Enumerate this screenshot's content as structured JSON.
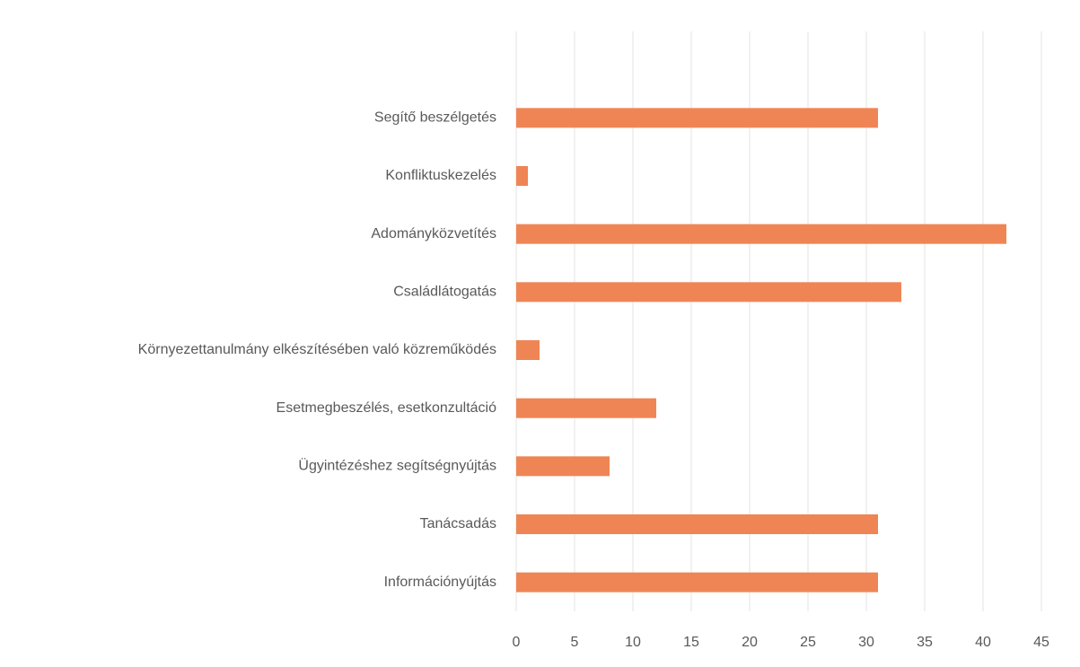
{
  "chart_data": {
    "type": "hbar",
    "categories": [
      "Segítő beszélgetés",
      "Konfliktuskezelés",
      "Adományközvetítés",
      "Családlátogatás",
      "Környezettanulmány elkészítésében való közreműködés",
      "Esetmegbeszélés, esetkonzultáció",
      "Ügyintézéshez segítségnyújtás",
      "Tanácsadás",
      "Információnyújtás"
    ],
    "values": [
      31,
      1,
      42,
      33,
      2,
      12,
      8,
      31,
      31
    ],
    "color": "#ef8554",
    "xlim": [
      0,
      45
    ],
    "xticks": [
      0,
      5,
      10,
      15,
      20,
      25,
      30,
      35,
      40,
      45
    ],
    "grid": true
  }
}
